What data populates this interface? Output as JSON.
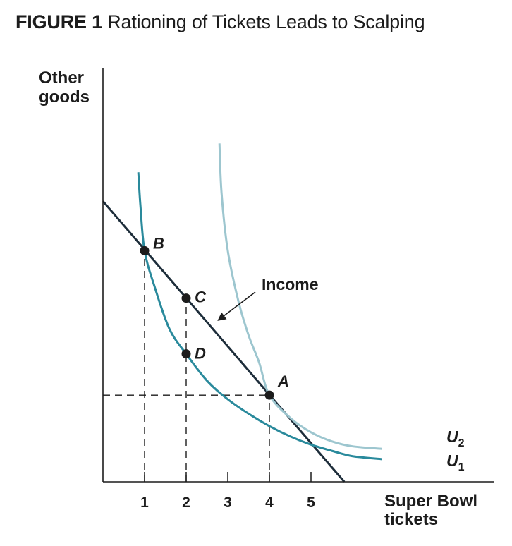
{
  "figure": {
    "label": "FIGURE 1",
    "title": "Rationing of Tickets Leads to Scalping"
  },
  "chart_data": {
    "type": "line",
    "title": "Rationing of Tickets Leads to Scalping",
    "xlabel": [
      "Super Bowl",
      "tickets"
    ],
    "ylabel": [
      "Other",
      "goods"
    ],
    "xlim": [
      0,
      6.2
    ],
    "ylim": [
      0,
      10
    ],
    "x_ticks": [
      1,
      2,
      3,
      4,
      5
    ],
    "grid": false,
    "colors": {
      "axis": "#1c1c1c",
      "budget": "#1d2d3a",
      "u1": "#2a8a9c",
      "u2": "#9dc6cf",
      "guide": "#1c1c1c"
    },
    "series": [
      {
        "name": "Income",
        "kind": "budget-line",
        "points": [
          [
            0,
            6.8
          ],
          [
            5.8,
            0
          ]
        ]
      },
      {
        "name": "U1",
        "kind": "indifference-curve",
        "points": [
          [
            0.85,
            7.5
          ],
          [
            0.9,
            6.7
          ],
          [
            1,
            5.6
          ],
          [
            1.25,
            4.7
          ],
          [
            1.6,
            3.7
          ],
          [
            2,
            3.1
          ],
          [
            2.5,
            2.45
          ],
          [
            3,
            2.0
          ],
          [
            3.5,
            1.65
          ],
          [
            4,
            1.35
          ],
          [
            4.5,
            1.1
          ],
          [
            5,
            0.9
          ],
          [
            5.5,
            0.75
          ],
          [
            6,
            0.62
          ],
          [
            6.7,
            0.55
          ]
        ]
      },
      {
        "name": "U2",
        "kind": "indifference-curve",
        "points": [
          [
            2.8,
            8.2
          ],
          [
            2.85,
            7.0
          ],
          [
            3.0,
            5.6
          ],
          [
            3.25,
            4.4
          ],
          [
            3.5,
            3.55
          ],
          [
            3.75,
            2.9
          ],
          [
            4,
            2.1
          ],
          [
            4.5,
            1.55
          ],
          [
            5,
            1.2
          ],
          [
            5.5,
            0.98
          ],
          [
            6,
            0.86
          ],
          [
            6.7,
            0.8
          ]
        ]
      }
    ],
    "points": [
      {
        "label": "B",
        "x": 1,
        "y": 5.6
      },
      {
        "label": "C",
        "x": 2,
        "y": 4.45
      },
      {
        "label": "D",
        "x": 2,
        "y": 3.1
      },
      {
        "label": "A",
        "x": 4,
        "y": 2.1
      }
    ],
    "guides": [
      {
        "from": [
          1,
          0
        ],
        "to": [
          1,
          5.6
        ]
      },
      {
        "from": [
          2,
          0
        ],
        "to": [
          2,
          4.45
        ]
      },
      {
        "from": [
          4,
          0
        ],
        "to": [
          4,
          2.1
        ]
      },
      {
        "from": [
          0,
          2.1
        ],
        "to": [
          4,
          2.1
        ]
      }
    ],
    "annotations": [
      {
        "text": "Income",
        "target": [
          2.75,
          3.9
        ]
      }
    ],
    "curve_labels": [
      {
        "name": "U2",
        "base": "U",
        "sub": "2"
      },
      {
        "name": "U1",
        "base": "U",
        "sub": "1"
      }
    ]
  }
}
